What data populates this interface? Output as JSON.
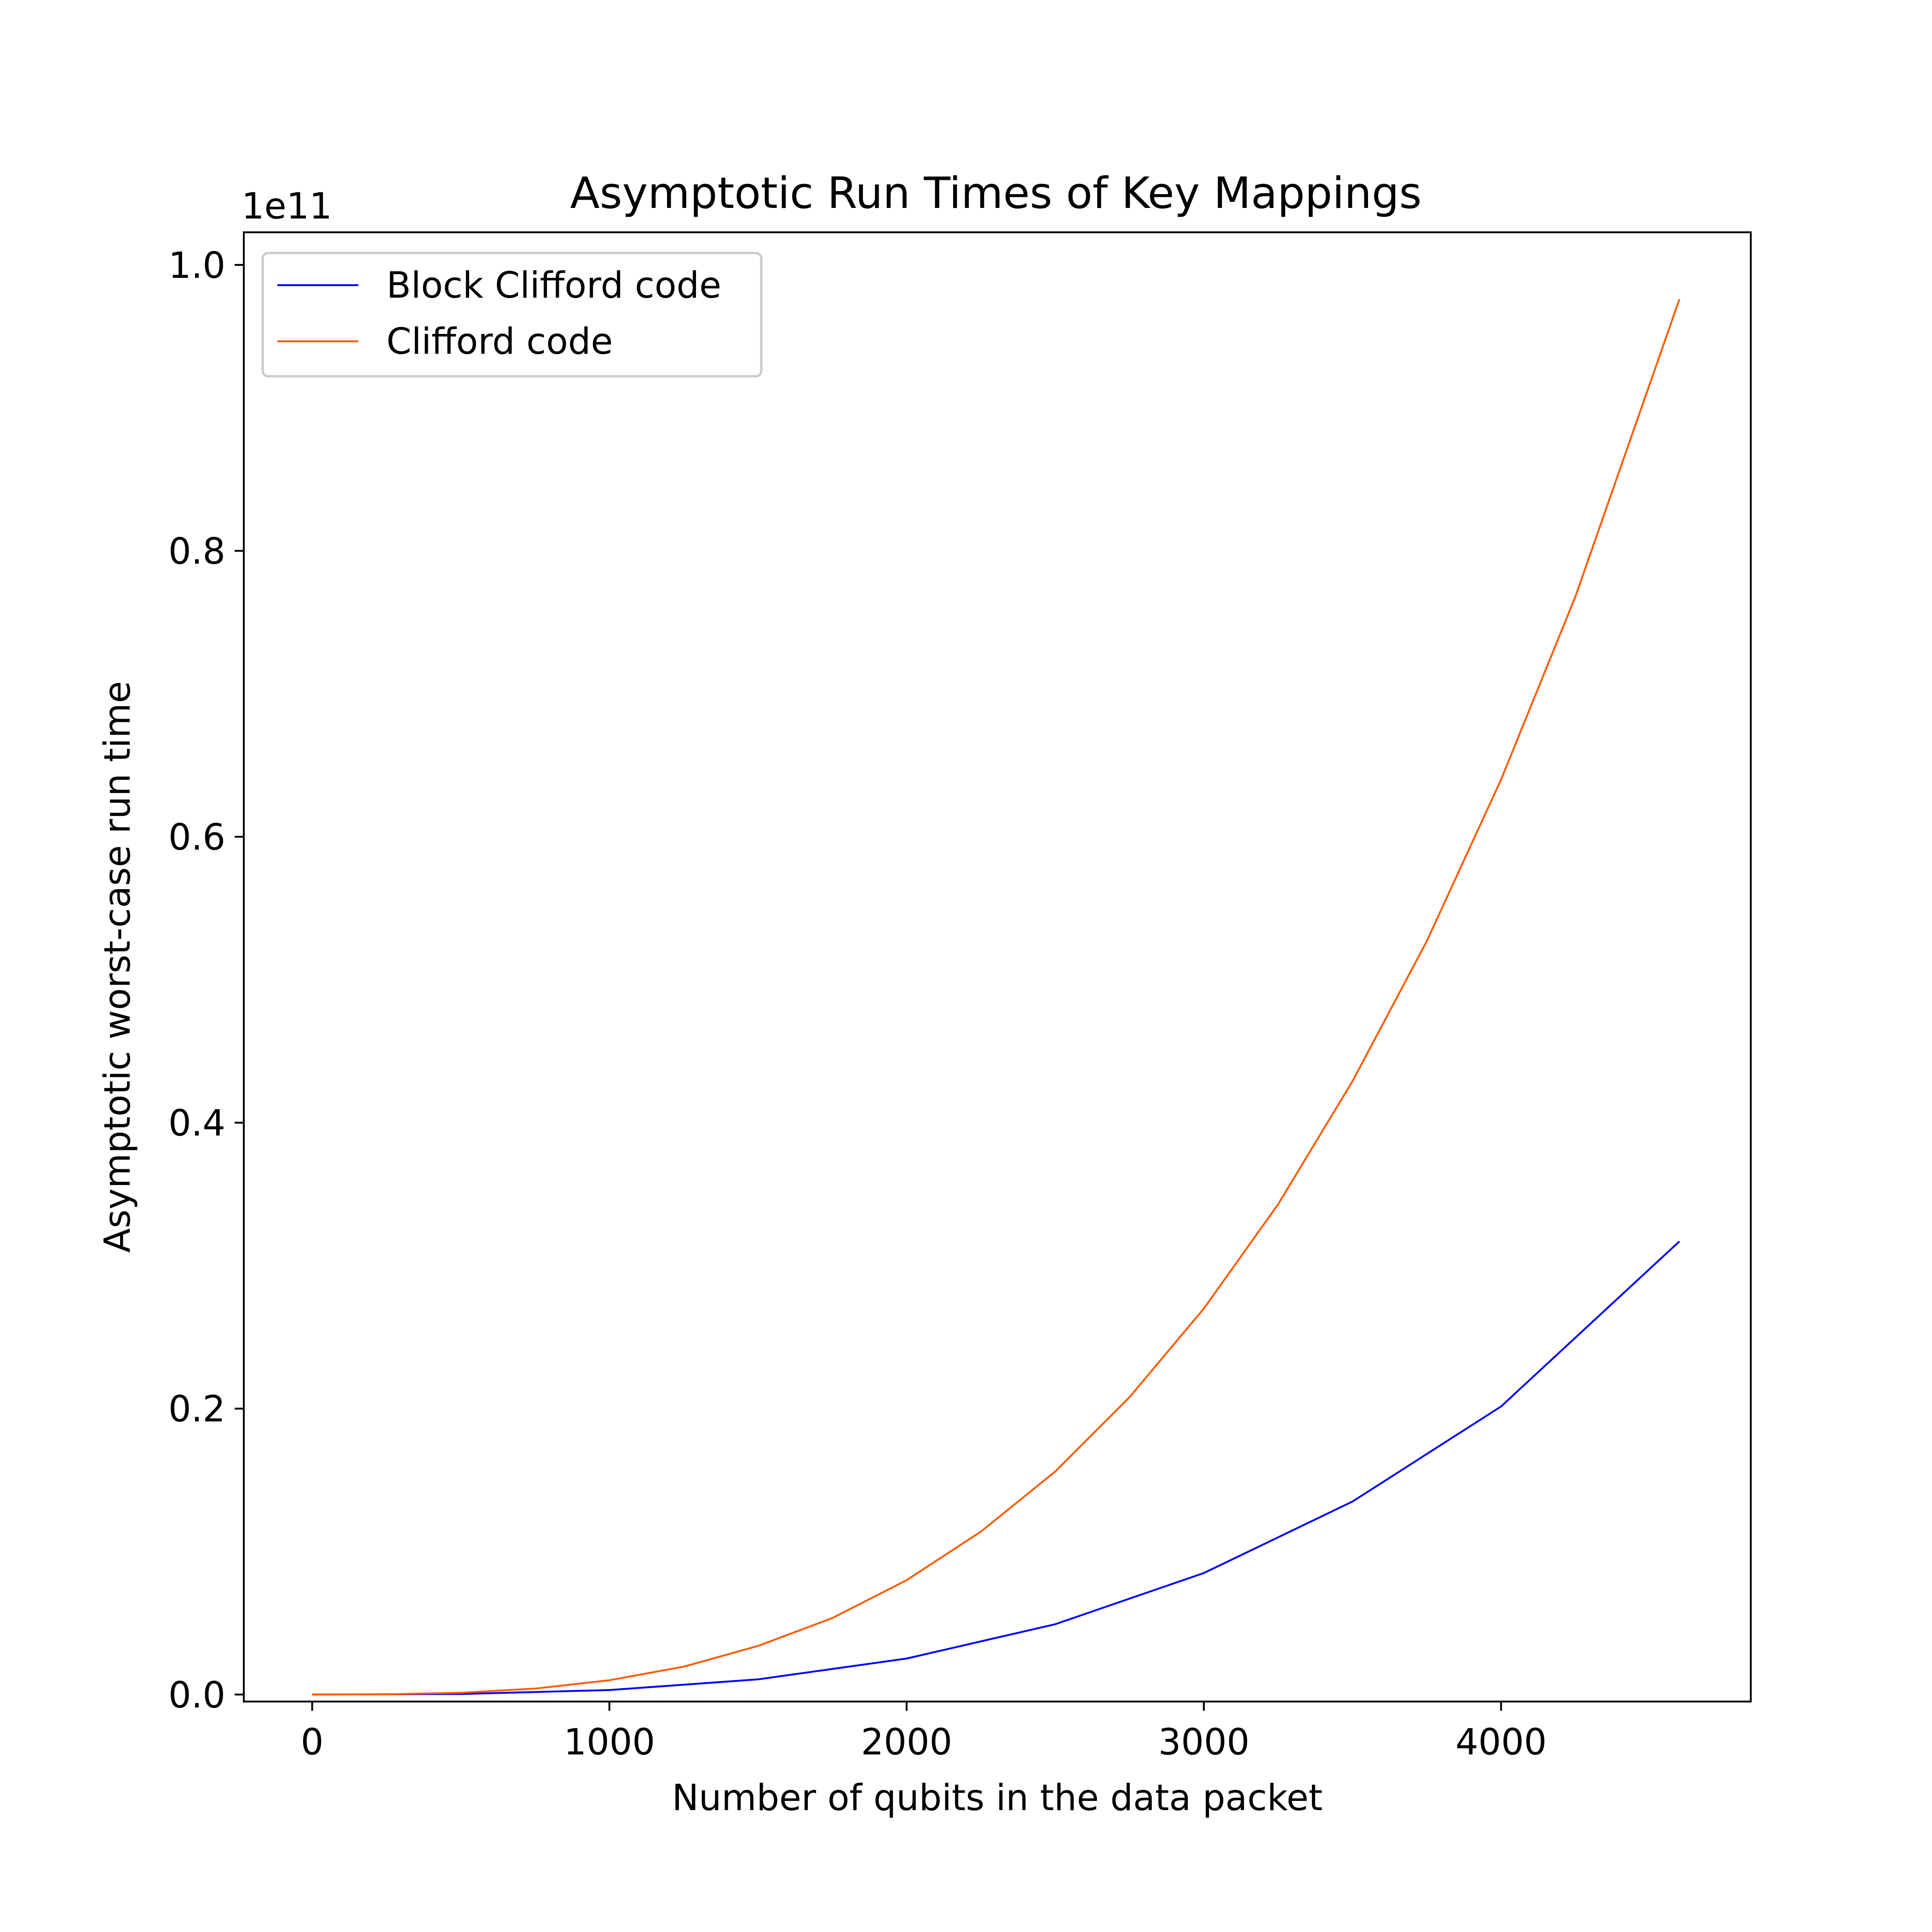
{
  "chart_data": {
    "type": "line",
    "title": "Asymptotic Run Times of Key Mappings",
    "xlabel": "Number of qubits in the data packet",
    "ylabel": "Asymptotic worst-case run time",
    "y_offset_label": "1e11",
    "xlim": [
      -230,
      4840
    ],
    "ylim": [
      -490000000.0,
      102280000000.0
    ],
    "x_ticks": [
      0,
      1000,
      2000,
      3000,
      4000
    ],
    "x_tick_labels": [
      "0",
      "1000",
      "2000",
      "3000",
      "4000"
    ],
    "y_ticks": [
      0,
      20000000000.0,
      40000000000.0,
      60000000000.0,
      80000000000.0,
      100000000000.0
    ],
    "y_tick_labels": [
      "0.0",
      "0.2",
      "0.4",
      "0.6",
      "0.8",
      "1.0"
    ],
    "grid": false,
    "legend_position": "upper-left",
    "series": [
      {
        "name": "Block Clifford code",
        "color": "#0000ff",
        "x": [
          0,
          500,
          1000,
          1500,
          2000,
          2500,
          3000,
          3500,
          4000,
          4600
        ],
        "y": [
          0,
          39000000,
          315000000,
          1060000000,
          2520000000,
          4920000000,
          8500000000,
          13500000000,
          20150000000,
          31700000000
        ]
      },
      {
        "name": "Clifford code",
        "color": "#ff5a00",
        "x": [
          0,
          250,
          500,
          750,
          1000,
          1250,
          1500,
          1750,
          2000,
          2250,
          2500,
          2750,
          3000,
          3250,
          3500,
          3750,
          4000,
          4250,
          4600
        ],
        "y": [
          0,
          16000000,
          124000000,
          418000000,
          1000000000,
          1950000000,
          3400000000,
          5350000000,
          8000000000,
          11400000000,
          15600000000,
          20800000000,
          27000000000,
          34300000000,
          42900000000,
          52700000000,
          64000000000,
          76800000000,
          97600000000
        ]
      }
    ]
  }
}
